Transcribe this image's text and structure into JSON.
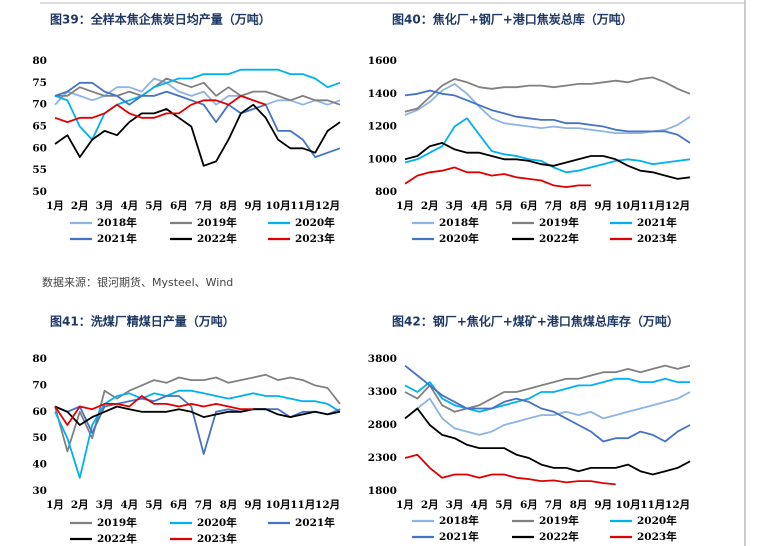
{
  "chart_data": [
    {
      "type": "line",
      "title": "图39：全样本焦企焦炭日均产量（万吨）",
      "categories": [
        "1月",
        null,
        "2月",
        null,
        "3月",
        null,
        "4月",
        null,
        "5月",
        null,
        "6月",
        null,
        "7月",
        null,
        "8月",
        null,
        "9月",
        null,
        "10月",
        null,
        "11月",
        null,
        "12月",
        null
      ],
      "ylim": [
        50,
        80
      ],
      "yticks": [
        50,
        55,
        60,
        65,
        70,
        75,
        80
      ],
      "grid": false,
      "legend": "bottom",
      "series": [
        {
          "name": "2018年",
          "color": "#8db4e2",
          "values": [
            70,
            73,
            72,
            71,
            72,
            74,
            74,
            73,
            76,
            75,
            73,
            72,
            73,
            70,
            72,
            72,
            71,
            70,
            71,
            71,
            70,
            71,
            70,
            71
          ]
        },
        {
          "name": "2019年",
          "color": "#808080",
          "values": [
            72,
            72,
            74,
            73,
            72,
            72,
            73,
            72,
            74,
            76,
            75,
            74,
            75,
            72,
            74,
            72,
            73,
            73,
            72,
            71,
            72,
            71,
            71,
            70
          ]
        },
        {
          "name": "2020年",
          "color": "#00b0f0",
          "values": [
            72,
            71,
            65,
            62,
            68,
            70,
            71,
            72,
            74,
            75,
            76,
            76,
            77,
            77,
            77,
            78,
            78,
            78,
            78,
            77,
            77,
            76,
            74,
            75
          ]
        },
        {
          "name": "2021年",
          "color": "#4472c4",
          "values": [
            72,
            73,
            75,
            75,
            73,
            72,
            70,
            72,
            72,
            73,
            72,
            71,
            70,
            66,
            70,
            68,
            69,
            70,
            64,
            64,
            62,
            58,
            59,
            60
          ]
        },
        {
          "name": "2022年",
          "color": "#000000",
          "values": [
            61,
            63,
            58,
            62,
            64,
            63,
            66,
            68,
            68,
            69,
            67,
            65,
            56,
            57,
            62,
            68,
            70,
            67,
            62,
            60,
            60,
            59,
            64,
            66
          ]
        },
        {
          "name": "2023年",
          "color": "#e00000",
          "values": [
            67,
            66,
            67,
            67,
            68,
            70,
            68,
            67,
            67,
            68,
            68,
            70,
            71,
            71,
            70,
            72,
            71,
            70,
            null,
            null,
            null,
            null,
            null,
            null
          ]
        }
      ]
    },
    {
      "type": "line",
      "title": "图40：焦化厂+钢厂+港口焦炭总库（万吨）",
      "categories": [
        "1月",
        null,
        "2月",
        null,
        "3月",
        null,
        "4月",
        null,
        "5月",
        null,
        "6月",
        null,
        "7月",
        null,
        "8月",
        null,
        "9月",
        null,
        "10月",
        null,
        "11月",
        null,
        "12月",
        null
      ],
      "ylim": [
        800,
        1600
      ],
      "yticks": [
        800,
        1000,
        1200,
        1400,
        1600
      ],
      "grid": false,
      "legend": "bottom",
      "series": [
        {
          "name": "2018年",
          "color": "#8db4e2",
          "values": [
            1270,
            1300,
            1350,
            1420,
            1460,
            1400,
            1320,
            1250,
            1220,
            1210,
            1200,
            1190,
            1200,
            1190,
            1190,
            1180,
            1170,
            1160,
            1160,
            1160,
            1170,
            1180,
            1210,
            1260
          ]
        },
        {
          "name": "2019年",
          "color": "#808080",
          "values": [
            1290,
            1310,
            1380,
            1450,
            1490,
            1470,
            1440,
            1430,
            1440,
            1440,
            1450,
            1450,
            1440,
            1450,
            1460,
            1460,
            1470,
            1480,
            1470,
            1490,
            1500,
            1470,
            1430,
            1400
          ]
        },
        {
          "name": "2021年",
          "color": "#00b0f0",
          "values": [
            980,
            1000,
            1040,
            1080,
            1200,
            1250,
            1150,
            1050,
            1030,
            1020,
            1000,
            990,
            950,
            920,
            930,
            950,
            970,
            990,
            1000,
            990,
            970,
            980,
            990,
            1000
          ]
        },
        {
          "name": "2020年",
          "color": "#4472c4",
          "values": [
            1390,
            1400,
            1420,
            1400,
            1390,
            1360,
            1330,
            1300,
            1280,
            1260,
            1250,
            1240,
            1240,
            1220,
            1220,
            1210,
            1200,
            1180,
            1170,
            1170,
            1170,
            1170,
            1150,
            1100
          ]
        },
        {
          "name": "2022年",
          "color": "#000000",
          "values": [
            1000,
            1020,
            1080,
            1100,
            1060,
            1040,
            1040,
            1020,
            1000,
            1000,
            990,
            970,
            960,
            980,
            1000,
            1020,
            1020,
            1000,
            960,
            930,
            920,
            900,
            880,
            890
          ]
        },
        {
          "name": "2023年",
          "color": "#e00000",
          "values": [
            850,
            900,
            920,
            930,
            950,
            920,
            920,
            900,
            910,
            890,
            880,
            870,
            840,
            830,
            840,
            840,
            null,
            null,
            null,
            null,
            null,
            null,
            null,
            null
          ]
        }
      ]
    },
    {
      "type": "line",
      "title": "图41：洗煤厂精煤日产量（万吨）",
      "categories": [
        "1月",
        null,
        "2月",
        null,
        "3月",
        null,
        "4月",
        null,
        "5月",
        null,
        "6月",
        null,
        "7月",
        null,
        "8月",
        null,
        "9月",
        null,
        "10月",
        null,
        "11月",
        null,
        "12月",
        null
      ],
      "ylim": [
        30,
        80
      ],
      "yticks": [
        30,
        40,
        50,
        60,
        70,
        80
      ],
      "grid": false,
      "legend": "bottom",
      "series": [
        {
          "name": "2019年",
          "color": "#808080",
          "values": [
            62,
            45,
            60,
            50,
            68,
            65,
            68,
            70,
            72,
            71,
            73,
            72,
            72,
            73,
            71,
            72,
            73,
            74,
            72,
            73,
            72,
            70,
            69,
            63
          ]
        },
        {
          "name": "2020年",
          "color": "#00b0f0",
          "values": [
            60,
            50,
            35,
            55,
            63,
            66,
            67,
            65,
            67,
            66,
            68,
            68,
            67,
            66,
            65,
            66,
            67,
            66,
            66,
            65,
            64,
            64,
            63,
            60
          ]
        },
        {
          "name": "2021年",
          "color": "#4472c4",
          "values": [
            62,
            60,
            62,
            52,
            62,
            63,
            64,
            65,
            64,
            66,
            66,
            62,
            44,
            60,
            61,
            60,
            61,
            61,
            61,
            58,
            60,
            60,
            59,
            61
          ]
        },
        {
          "name": "2022年",
          "color": "#000000",
          "values": [
            62,
            60,
            55,
            58,
            60,
            62,
            61,
            60,
            60,
            60,
            61,
            60,
            58,
            59,
            60,
            60,
            61,
            61,
            59,
            58,
            59,
            60,
            59,
            60
          ]
        },
        {
          "name": "2023年",
          "color": "#e00000",
          "values": [
            62,
            55,
            62,
            61,
            63,
            63,
            62,
            66,
            63,
            63,
            62,
            63,
            62,
            63,
            62,
            61,
            61,
            null,
            null,
            null,
            null,
            null,
            null,
            null
          ]
        }
      ]
    },
    {
      "type": "line",
      "title": "图42：钢厂+焦化厂+煤矿+港口焦煤总库存（万吨）",
      "categories": [
        "1月",
        null,
        "2月",
        null,
        "3月",
        null,
        "4月",
        null,
        "5月",
        null,
        "6月",
        null,
        "7月",
        null,
        "8月",
        null,
        "9月",
        null,
        "10月",
        null,
        "11月",
        null,
        "12月",
        null
      ],
      "ylim": [
        1800,
        3800
      ],
      "yticks": [
        1800,
        2300,
        2800,
        3300,
        3800
      ],
      "grid": false,
      "legend": "bottom",
      "series": [
        {
          "name": "2018年",
          "color": "#8db4e2",
          "values": [
            2900,
            3050,
            3200,
            2900,
            2750,
            2700,
            2650,
            2700,
            2800,
            2850,
            2900,
            2950,
            2950,
            3000,
            2950,
            3000,
            2900,
            2950,
            3000,
            3050,
            3100,
            3150,
            3200,
            3300
          ]
        },
        {
          "name": "2019年",
          "color": "#808080",
          "values": [
            3300,
            3200,
            3400,
            3100,
            3000,
            3050,
            3100,
            3200,
            3300,
            3300,
            3350,
            3400,
            3450,
            3500,
            3500,
            3550,
            3600,
            3600,
            3650,
            3600,
            3650,
            3700,
            3650,
            3700
          ]
        },
        {
          "name": "2020年",
          "color": "#00b0f0",
          "values": [
            3400,
            3300,
            3450,
            3200,
            3100,
            3050,
            3000,
            3050,
            3100,
            3150,
            3200,
            3300,
            3300,
            3350,
            3400,
            3400,
            3450,
            3500,
            3500,
            3450,
            3450,
            3500,
            3450,
            3450
          ]
        },
        {
          "name": "2021年",
          "color": "#4472c4",
          "values": [
            3700,
            3550,
            3400,
            3250,
            3150,
            3050,
            3050,
            3050,
            3150,
            3200,
            3150,
            3050,
            3000,
            2900,
            2800,
            2700,
            2550,
            2600,
            2600,
            2700,
            2650,
            2550,
            2700,
            2800
          ]
        },
        {
          "name": "2022年",
          "color": "#000000",
          "values": [
            2900,
            3050,
            2800,
            2650,
            2600,
            2500,
            2450,
            2450,
            2450,
            2350,
            2300,
            2200,
            2150,
            2150,
            2100,
            2150,
            2150,
            2150,
            2200,
            2100,
            2050,
            2100,
            2150,
            2250
          ]
        },
        {
          "name": "2023年",
          "color": "#e00000",
          "values": [
            2300,
            2350,
            2150,
            2000,
            2050,
            2050,
            2000,
            2050,
            2050,
            2000,
            1980,
            1950,
            1960,
            1930,
            1950,
            1950,
            1920,
            1900,
            null,
            null,
            null,
            null,
            null,
            null
          ]
        }
      ]
    }
  ],
  "source": "数据来源：银河期货、Mysteel、Wind"
}
